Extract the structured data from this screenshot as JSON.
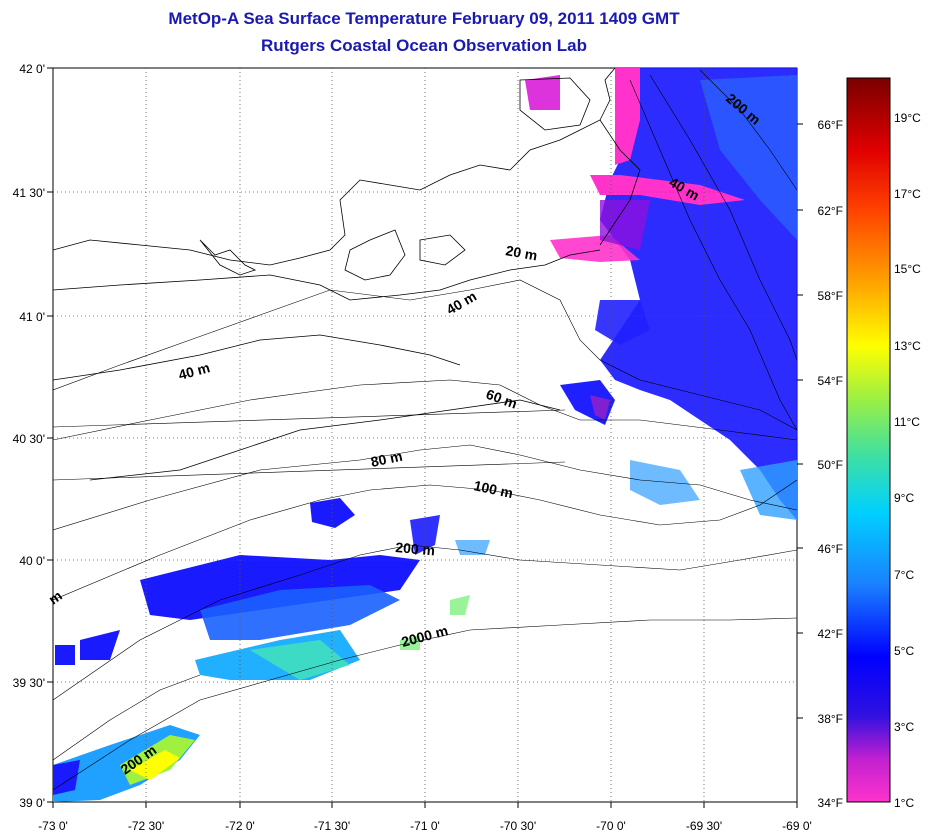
{
  "title_line1": "MetOp-A Sea Surface Temperature February 09, 2011 1409 GMT",
  "title_line2": "Rutgers Coastal Ocean Observation Lab",
  "lat_labels": [
    "42 0'",
    "41 30'",
    "41 0'",
    "40 30'",
    "40 0'",
    "39 30'",
    "39 0'"
  ],
  "lon_labels": [
    "-73 0'",
    "-72 30'",
    "-72 0'",
    "-71 30'",
    "-71 0'",
    "-70 30'",
    "-70 0'",
    "-69 30'",
    "-69 0'"
  ],
  "fahrenheit_labels": [
    "66°F",
    "62°F",
    "58°F",
    "54°F",
    "50°F",
    "46°F",
    "42°F",
    "38°F",
    "34°F"
  ],
  "celsius_labels": [
    "19°C",
    "17°C",
    "15°C",
    "13°C",
    "11°C",
    "9°C",
    "7°C",
    "5°C",
    "3°C",
    "1°C"
  ],
  "contour_labels": {
    "c200a": "200 m",
    "c40a": "40 m",
    "c20": "20 m",
    "c40b": "40 m",
    "c40c": "40 m",
    "c60": "60 m",
    "c80": "80 m",
    "c100": "100 m",
    "c200b": "200 m",
    "c2000": "2000 m",
    "c200c": "200 m",
    "cm": "m"
  },
  "colors": {
    "title": "#1a1ab0",
    "cold": "#ff33cc",
    "blue": "#1a1aff",
    "cyan": "#20c0ff",
    "warm": "#ffff00"
  }
}
